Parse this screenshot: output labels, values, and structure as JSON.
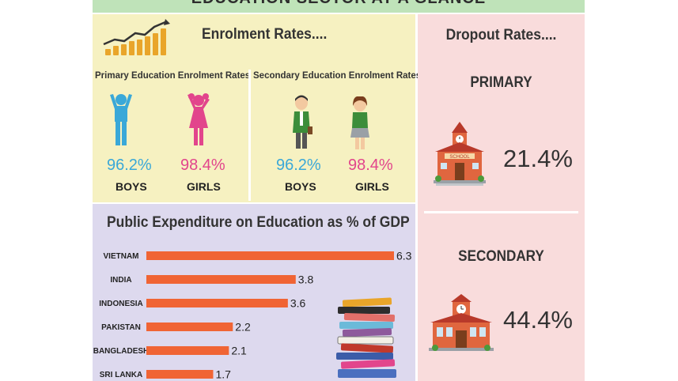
{
  "banner": {
    "title": "EDUCATION SECTOR AT A GLANCE"
  },
  "enrolment": {
    "title": "Enrolment Rates....",
    "primary": {
      "heading": "Primary Education Enrolment Rates",
      "boys_value": "96.2%",
      "boys_label": "BOYS",
      "girls_value": "98.4%",
      "girls_label": "GIRLS"
    },
    "secondary": {
      "heading": "Secondary Education Enrolment Rates",
      "boys_value": "96.2%",
      "boys_label": "BOYS",
      "girls_value": "98.4%",
      "girls_label": "GIRLS"
    }
  },
  "dropout": {
    "title": "Dropout Rates....",
    "primary": {
      "label": "PRIMARY",
      "value": "21.4%"
    },
    "secondary": {
      "label": "SECONDARY",
      "value": "44.4%"
    }
  },
  "colors": {
    "bar": "#f06434",
    "boys": "#3aa8d8",
    "girls": "#e2458c"
  },
  "chart_data": {
    "type": "bar",
    "orientation": "horizontal",
    "title": "Public Expenditure on Education as % of GDP",
    "categories": [
      "VIETNAM",
      "INDIA",
      "INDONESIA",
      "PAKISTAN",
      "BANGLADESH",
      "SRI LANKA"
    ],
    "values": [
      6.3,
      3.8,
      3.6,
      2.2,
      2.1,
      1.7
    ],
    "xlim": [
      0,
      6.3
    ],
    "grid": false,
    "legend": "none"
  }
}
